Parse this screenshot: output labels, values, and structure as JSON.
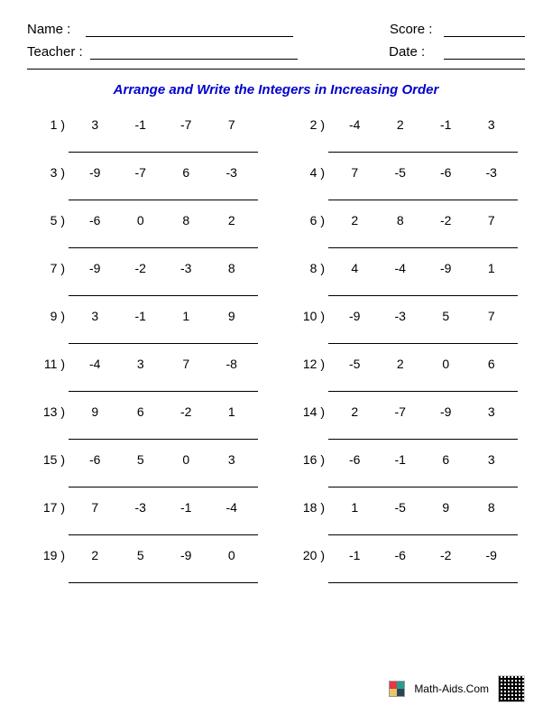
{
  "header": {
    "name_label": "Name :",
    "teacher_label": "Teacher :",
    "score_label": "Score :",
    "date_label": "Date :",
    "name_line_width": 230,
    "teacher_line_width": 230,
    "score_line_width": 90,
    "date_line_width": 90
  },
  "title": "Arrange and Write the Integers in Increasing Order",
  "title_color": "#0000cc",
  "problems": [
    {
      "n": "1 )",
      "v": [
        "3",
        "-1",
        "-7",
        "7"
      ]
    },
    {
      "n": "2 )",
      "v": [
        "-4",
        "2",
        "-1",
        "3"
      ]
    },
    {
      "n": "3 )",
      "v": [
        "-9",
        "-7",
        "6",
        "-3"
      ]
    },
    {
      "n": "4 )",
      "v": [
        "7",
        "-5",
        "-6",
        "-3"
      ]
    },
    {
      "n": "5 )",
      "v": [
        "-6",
        "0",
        "8",
        "2"
      ]
    },
    {
      "n": "6 )",
      "v": [
        "2",
        "8",
        "-2",
        "7"
      ]
    },
    {
      "n": "7 )",
      "v": [
        "-9",
        "-2",
        "-3",
        "8"
      ]
    },
    {
      "n": "8 )",
      "v": [
        "4",
        "-4",
        "-9",
        "1"
      ]
    },
    {
      "n": "9 )",
      "v": [
        "3",
        "-1",
        "1",
        "9"
      ]
    },
    {
      "n": "10 )",
      "v": [
        "-9",
        "-3",
        "5",
        "7"
      ]
    },
    {
      "n": "11 )",
      "v": [
        "-4",
        "3",
        "7",
        "-8"
      ]
    },
    {
      "n": "12 )",
      "v": [
        "-5",
        "2",
        "0",
        "6"
      ]
    },
    {
      "n": "13 )",
      "v": [
        "9",
        "6",
        "-2",
        "1"
      ]
    },
    {
      "n": "14 )",
      "v": [
        "2",
        "-7",
        "-9",
        "3"
      ]
    },
    {
      "n": "15 )",
      "v": [
        "-6",
        "5",
        "0",
        "3"
      ]
    },
    {
      "n": "16 )",
      "v": [
        "-6",
        "-1",
        "6",
        "3"
      ]
    },
    {
      "n": "17 )",
      "v": [
        "7",
        "-3",
        "-1",
        "-4"
      ]
    },
    {
      "n": "18 )",
      "v": [
        "1",
        "-5",
        "9",
        "8"
      ]
    },
    {
      "n": "19 )",
      "v": [
        "2",
        "5",
        "-9",
        "0"
      ]
    },
    {
      "n": "20 )",
      "v": [
        "-1",
        "-6",
        "-2",
        "-9"
      ]
    }
  ],
  "footer": {
    "site": "Math-Aids.Com"
  }
}
